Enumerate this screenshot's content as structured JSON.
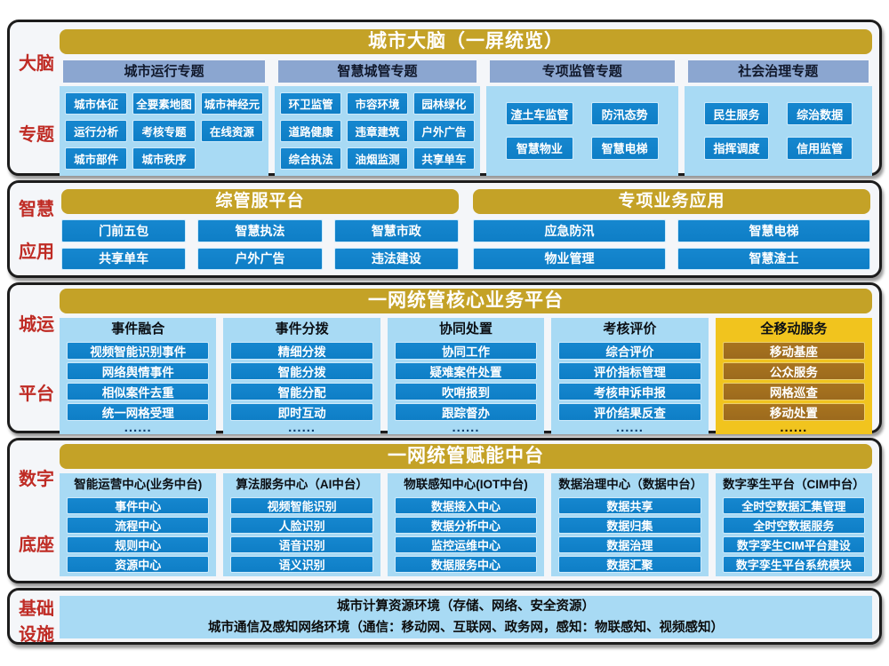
{
  "colors": {
    "gold": "#c4a227",
    "yellow": "#f1c41e",
    "brown": "#9c6a1d",
    "blue": "#0e7ec6",
    "blue-hi": "#1687cf",
    "panel": "#a8daf4",
    "band": "#8ba6d0",
    "red": "#bf2b24",
    "bg": "#f4f6f9",
    "line": "#1c1c1c"
  },
  "brain": {
    "label": [
      "大脑",
      "专题"
    ],
    "banner": "城市大脑（一屏统览）",
    "groups": [
      {
        "header": "城市运行专题",
        "buttons": [
          "城市体征",
          "全要素地图",
          "城市神经元",
          "运行分析",
          "考核专题",
          "在线资源",
          "城市部件",
          "城市秩序"
        ]
      },
      {
        "header": "智慧城管专题",
        "buttons": [
          "环卫监管",
          "市容环境",
          "园林绿化",
          "道路健康",
          "违章建筑",
          "户外广告",
          "综合执法",
          "油烟监测",
          "共享单车"
        ]
      },
      {
        "header": "专项监管专题",
        "buttons": [
          "渣土车监管",
          "防汛态势",
          "智慧物业",
          "智慧电梯"
        ]
      },
      {
        "header": "社会治理专题",
        "buttons": [
          "民生服务",
          "综治数据",
          "指挥调度",
          "信用监管"
        ]
      }
    ]
  },
  "apps": {
    "label": [
      "智慧",
      "应用"
    ],
    "halves": [
      {
        "banner": "综管服平台",
        "buttons": [
          "门前五包",
          "智慧执法",
          "智慧市政",
          "共享单车",
          "户外广告",
          "违法建设"
        ]
      },
      {
        "banner": "专项业务应用",
        "buttons": [
          "应急防汛",
          "智慧电梯",
          "物业管理",
          "智慧渣土"
        ]
      }
    ]
  },
  "core": {
    "label": [
      "城运",
      "平台"
    ],
    "banner": "一网统管核心业务平台",
    "dots": "......",
    "columns": [
      {
        "header": "事件融合",
        "buttons": [
          "视频智能识别事件",
          "网络舆情事件",
          "相似案件去重",
          "统一网格受理"
        ]
      },
      {
        "header": "事件分拨",
        "buttons": [
          "精细分拨",
          "智能分拨",
          "智能分配",
          "即时互动"
        ]
      },
      {
        "header": "协同处置",
        "buttons": [
          "协同工作",
          "疑难案件处置",
          "吹哨报到",
          "跟踪督办"
        ]
      },
      {
        "header": "考核评价",
        "buttons": [
          "综合评价",
          "评价指标管理",
          "考核申诉申报",
          "评价结果反查"
        ]
      },
      {
        "header": "全移动服务",
        "buttons": [
          "移动基座",
          "公众服务",
          "网格巡查",
          "移动处置"
        ]
      }
    ]
  },
  "base": {
    "label": [
      "数字",
      "底座"
    ],
    "banner": "一网统管赋能中台",
    "columns": [
      {
        "header": "智能运营中心(业务中台)",
        "buttons": [
          "事件中心",
          "流程中心",
          "规则中心",
          "资源中心"
        ]
      },
      {
        "header": "算法服务中心（AI中台）",
        "buttons": [
          "视频智能识别",
          "人脸识别",
          "语音识别",
          "语义识别"
        ]
      },
      {
        "header": "物联感知中心(IOT中台)",
        "buttons": [
          "数据接入中心",
          "数据分析中心",
          "监控运维中心",
          "数据服务中心"
        ]
      },
      {
        "header": "数据治理中心（数据中台）",
        "buttons": [
          "数据共享",
          "数据归集",
          "数据治理",
          "数据汇聚"
        ]
      },
      {
        "header": "数字孪生平台（CIM中台）",
        "buttons": [
          "全时空数据汇集管理",
          "全时空数据服务",
          "数字孪生CIM平台建设",
          "数字孪生平台系统模块"
        ]
      }
    ]
  },
  "infra": {
    "label": [
      "基础",
      "设施"
    ],
    "bars": [
      "城市计算资源环境（存储、网络、安全资源）",
      "城市通信及感知网络环境（通信：移动网、互联网、政务网，感知：物联感知、视频感知）"
    ]
  }
}
